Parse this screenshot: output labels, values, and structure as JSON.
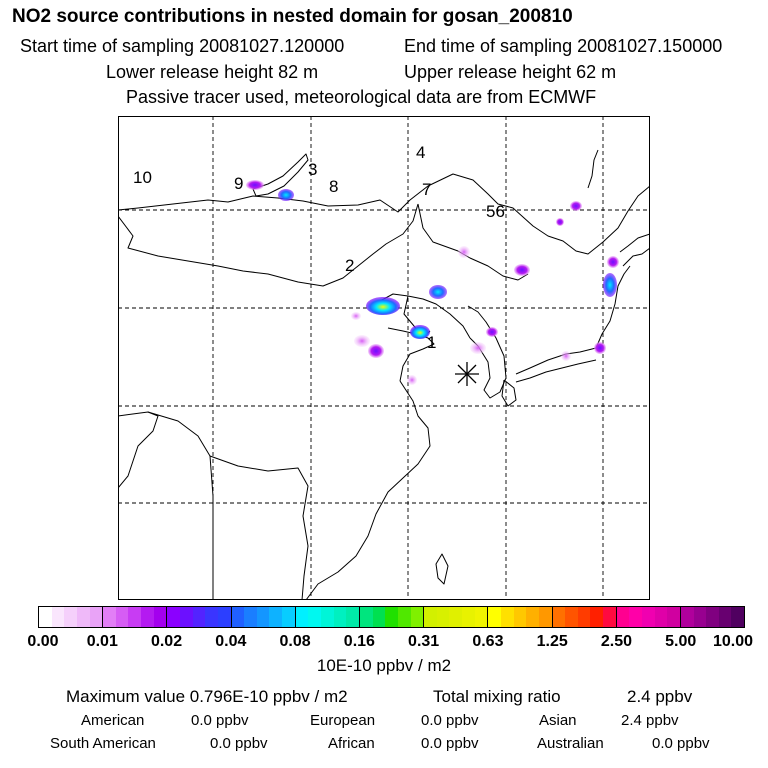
{
  "header": {
    "title": "NO2 source contributions in nested domain for gosan_200810",
    "start_label": "Start time of sampling 20081027.120000",
    "end_label": "End time of sampling 20081027.150000",
    "lower_label": "Lower release height   82 m",
    "upper_label": "Upper release height   62 m",
    "tracer_label": "Passive tracer used, meteorological data are from ECMWF"
  },
  "map": {
    "region_labels": [
      {
        "id": "1",
        "text": "1"
      },
      {
        "id": "2",
        "text": "2"
      },
      {
        "id": "3",
        "text": "3"
      },
      {
        "id": "4",
        "text": "4"
      },
      {
        "id": "56",
        "text": "56"
      },
      {
        "id": "7",
        "text": "7"
      },
      {
        "id": "8",
        "text": "8"
      },
      {
        "id": "9",
        "text": "9"
      },
      {
        "id": "10",
        "text": "10"
      }
    ],
    "receptor_marker": "asterisk-receptor-icon",
    "colors": {
      "grid": "#000000",
      "coast": "#000000",
      "hotspot_cyan": "#00e8ff",
      "hotspot_yellow": "#f0ff00",
      "hotspot_blue": "#1f6bff",
      "hotspot_violet": "#7d10ff",
      "hotspot_magenta": "#d020ff"
    }
  },
  "colorbar": {
    "ticks": [
      "0.00",
      "0.01",
      "0.02",
      "0.04",
      "0.08",
      "0.16",
      "0.31",
      "0.63",
      "1.25",
      "2.50",
      "5.00",
      "10.00"
    ],
    "groups": [
      [
        "#ffffff",
        "#fae6fd",
        "#f5d0fb",
        "#efb9f9",
        "#e9a3f7"
      ],
      [
        "#e27ef6",
        "#d65df4",
        "#c83cf3",
        "#b41af1",
        "#a400ee"
      ],
      [
        "#8b00ff",
        "#6c10ff",
        "#5323ff",
        "#3a35ff",
        "#2c3fff"
      ],
      [
        "#2060ff",
        "#1a7eff",
        "#1496ff",
        "#0eb2ff",
        "#08cdff"
      ],
      [
        "#00f0ff",
        "#00f8f0",
        "#00f5d8",
        "#00f0c0",
        "#00eaa8"
      ],
      [
        "#00e57e",
        "#00e050",
        "#20e000",
        "#50e800",
        "#80f000"
      ],
      [
        "#d2f000",
        "#d8f000",
        "#e0f000",
        "#e8f200",
        "#f0f400"
      ],
      [
        "#ffff00",
        "#ffe000",
        "#ffc800",
        "#ffb000",
        "#ff9800"
      ],
      [
        "#ff7000",
        "#ff5400",
        "#ff3c00",
        "#ff2000",
        "#ff0a40"
      ],
      [
        "#ff0090",
        "#ff00a8",
        "#f000b0",
        "#e000a8",
        "#d000a0"
      ],
      [
        "#b0009c",
        "#980090",
        "#800080",
        "#680070",
        "#500060"
      ]
    ],
    "unit": "10E-10 ppbv / m2"
  },
  "summary": {
    "max_label": "Maximum value  0.796E-10 ppbv / m2",
    "total_label": "Total mixing ratio",
    "total_value": "2.4 ppbv",
    "regions": [
      {
        "name": "American",
        "value": "0.0 ppbv"
      },
      {
        "name": "European",
        "value": "0.0 ppbv"
      },
      {
        "name": "Asian",
        "value": "2.4 ppbv"
      },
      {
        "name": "South American",
        "value": "0.0 ppbv"
      },
      {
        "name": "African",
        "value": "0.0 ppbv"
      },
      {
        "name": "Australian",
        "value": "0.0 ppbv"
      }
    ]
  }
}
